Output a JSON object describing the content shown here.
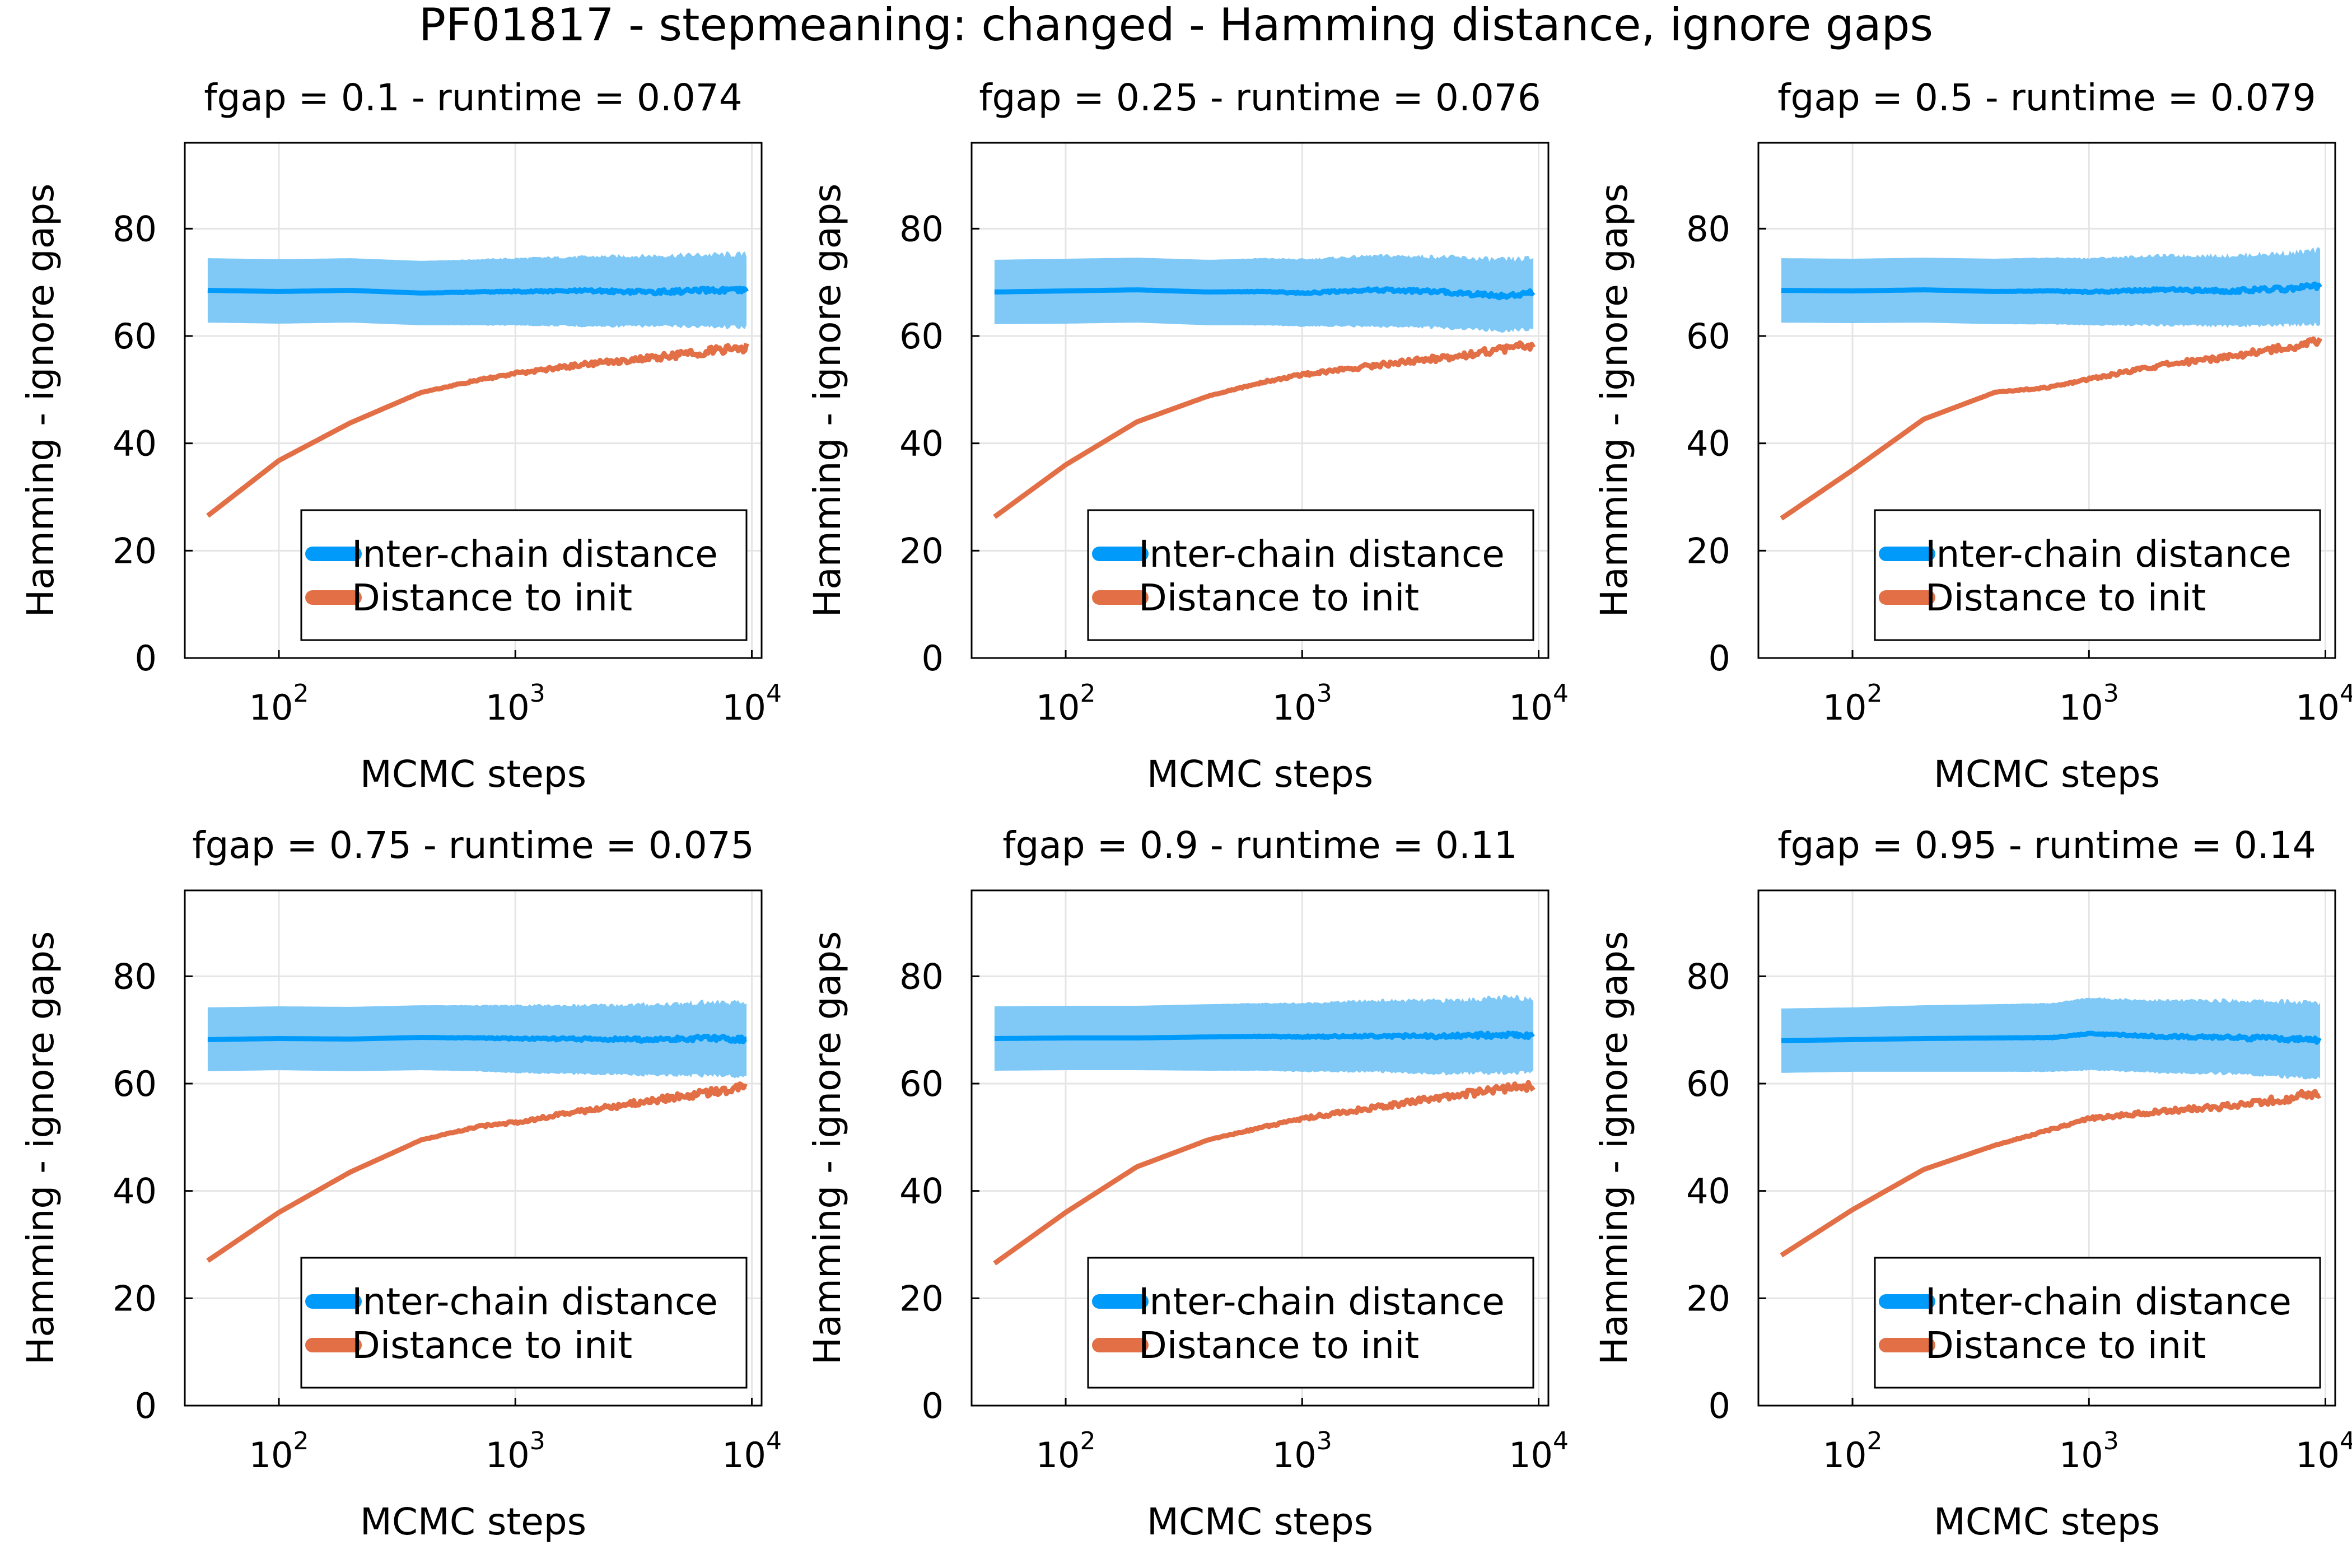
{
  "figure": {
    "suptitle": "PF01817 - stepmeaning: changed - Hamming distance, ignore gaps"
  },
  "colors": {
    "inter_chain_line": "#009AFA",
    "inter_chain_band": "#80C9F7",
    "distance_to_init": "#E26F46",
    "grid": "#E5E5E5",
    "axis": "#000000"
  },
  "chart_data": [
    {
      "type": "line",
      "title": "fgap = 0.1 - runtime = 0.074",
      "xlabel": "MCMC steps",
      "ylabel": "Hamming - ignore gaps",
      "xscale": "log",
      "xlim": [
        40,
        11000
      ],
      "ylim": [
        0,
        96
      ],
      "xticks": [
        {
          "value": 100,
          "base": "10",
          "exp": "2"
        },
        {
          "value": 1000,
          "base": "10",
          "exp": "3"
        },
        {
          "value": 10000,
          "base": "10",
          "exp": "4"
        }
      ],
      "yticks": [
        "0",
        "20",
        "40",
        "60",
        "80"
      ],
      "grid": true,
      "legend": "bottom-right",
      "x": [
        50,
        100,
        200,
        400,
        700,
        1000,
        2000,
        4000,
        7000,
        9500
      ],
      "series": [
        {
          "name": "Inter-chain distance",
          "values": [
            68.5,
            68.3,
            68.5,
            68.0,
            68.2,
            68.3,
            68.4,
            68.2,
            68.5,
            68.4
          ],
          "lower": [
            62.5,
            62.3,
            62.5,
            62.0,
            62.0,
            62.0,
            61.8,
            61.8,
            61.7,
            61.7
          ],
          "upper": [
            74.5,
            74.3,
            74.5,
            74.0,
            74.3,
            74.5,
            74.8,
            75.0,
            75.2,
            75.2
          ]
        },
        {
          "name": "Distance to init",
          "values": [
            26.5,
            36.8,
            43.8,
            49.5,
            51.8,
            53.0,
            54.8,
            56.0,
            57.3,
            57.8
          ]
        }
      ]
    },
    {
      "type": "line",
      "title": "fgap = 0.25 - runtime = 0.076",
      "xlabel": "MCMC steps",
      "ylabel": "Hamming - ignore gaps",
      "xscale": "log",
      "xlim": [
        40,
        11000
      ],
      "ylim": [
        0,
        96
      ],
      "xticks": [
        {
          "value": 100,
          "base": "10",
          "exp": "2"
        },
        {
          "value": 1000,
          "base": "10",
          "exp": "3"
        },
        {
          "value": 10000,
          "base": "10",
          "exp": "4"
        }
      ],
      "yticks": [
        "0",
        "20",
        "40",
        "60",
        "80"
      ],
      "grid": true,
      "legend": "bottom-right",
      "x": [
        50,
        100,
        200,
        400,
        700,
        1000,
        2000,
        4000,
        7000,
        9500
      ],
      "series": [
        {
          "name": "Inter-chain distance",
          "values": [
            68.2,
            68.4,
            68.6,
            68.2,
            68.3,
            68.0,
            68.6,
            68.2,
            67.5,
            68.0
          ],
          "lower": [
            62.2,
            62.3,
            62.5,
            62.0,
            62.0,
            61.8,
            61.8,
            61.5,
            61.0,
            61.3
          ],
          "upper": [
            74.2,
            74.4,
            74.6,
            74.2,
            74.5,
            74.3,
            75.0,
            74.8,
            74.2,
            74.5
          ]
        },
        {
          "name": "Distance to init",
          "values": [
            26.3,
            36.0,
            44.0,
            48.8,
            51.5,
            52.8,
            54.5,
            56.0,
            57.5,
            58.3
          ]
        }
      ]
    },
    {
      "type": "line",
      "title": "fgap = 0.5 - runtime = 0.079",
      "xlabel": "MCMC steps",
      "ylabel": "Hamming - ignore gaps",
      "xscale": "log",
      "xlim": [
        40,
        11000
      ],
      "ylim": [
        0,
        96
      ],
      "xticks": [
        {
          "value": 100,
          "base": "10",
          "exp": "2"
        },
        {
          "value": 1000,
          "base": "10",
          "exp": "3"
        },
        {
          "value": 10000,
          "base": "10",
          "exp": "4"
        }
      ],
      "yticks": [
        "0",
        "20",
        "40",
        "60",
        "80"
      ],
      "grid": true,
      "legend": "bottom-right",
      "x": [
        50,
        100,
        200,
        400,
        700,
        1000,
        2000,
        4000,
        7000,
        9500
      ],
      "series": [
        {
          "name": "Inter-chain distance",
          "values": [
            68.5,
            68.4,
            68.6,
            68.3,
            68.4,
            68.2,
            68.6,
            68.4,
            68.8,
            69.3
          ],
          "lower": [
            62.5,
            62.4,
            62.5,
            62.2,
            62.2,
            62.0,
            62.0,
            61.8,
            62.0,
            62.3
          ],
          "upper": [
            74.5,
            74.4,
            74.6,
            74.4,
            74.6,
            74.5,
            75.0,
            75.0,
            75.5,
            76.0
          ]
        },
        {
          "name": "Distance to init",
          "values": [
            26.0,
            35.0,
            44.5,
            49.5,
            50.5,
            52.0,
            54.5,
            56.3,
            58.0,
            59.0
          ]
        }
      ]
    },
    {
      "type": "line",
      "title": "fgap = 0.75 - runtime = 0.075",
      "xlabel": "MCMC steps",
      "ylabel": "Hamming - ignore gaps",
      "xscale": "log",
      "xlim": [
        40,
        11000
      ],
      "ylim": [
        0,
        96
      ],
      "xticks": [
        {
          "value": 100,
          "base": "10",
          "exp": "2"
        },
        {
          "value": 1000,
          "base": "10",
          "exp": "3"
        },
        {
          "value": 10000,
          "base": "10",
          "exp": "4"
        }
      ],
      "yticks": [
        "0",
        "20",
        "40",
        "60",
        "80"
      ],
      "grid": true,
      "legend": "bottom-right",
      "x": [
        50,
        100,
        200,
        400,
        700,
        1000,
        2000,
        4000,
        7000,
        9500
      ],
      "series": [
        {
          "name": "Inter-chain distance",
          "values": [
            68.2,
            68.4,
            68.3,
            68.6,
            68.5,
            68.4,
            68.3,
            68.2,
            68.5,
            68.2
          ],
          "lower": [
            62.3,
            62.5,
            62.3,
            62.5,
            62.3,
            62.0,
            61.8,
            61.5,
            61.5,
            61.3
          ],
          "upper": [
            74.2,
            74.4,
            74.3,
            74.6,
            74.6,
            74.6,
            74.6,
            74.8,
            75.2,
            75.0
          ]
        },
        {
          "name": "Distance to init",
          "values": [
            27.0,
            36.0,
            43.5,
            49.5,
            52.0,
            52.8,
            55.0,
            57.0,
            58.5,
            59.5
          ]
        }
      ]
    },
    {
      "type": "line",
      "title": "fgap = 0.9 - runtime = 0.11",
      "xlabel": "MCMC steps",
      "ylabel": "Hamming - ignore gaps",
      "xscale": "log",
      "xlim": [
        40,
        11000
      ],
      "ylim": [
        0,
        96
      ],
      "xticks": [
        {
          "value": 100,
          "base": "10",
          "exp": "2"
        },
        {
          "value": 1000,
          "base": "10",
          "exp": "3"
        },
        {
          "value": 10000,
          "base": "10",
          "exp": "4"
        }
      ],
      "yticks": [
        "0",
        "20",
        "40",
        "60",
        "80"
      ],
      "grid": true,
      "legend": "bottom-right",
      "x": [
        50,
        100,
        200,
        400,
        700,
        1000,
        2000,
        4000,
        7000,
        9500
      ],
      "series": [
        {
          "name": "Inter-chain distance",
          "values": [
            68.4,
            68.5,
            68.5,
            68.7,
            68.8,
            68.7,
            68.9,
            68.8,
            69.1,
            69.0
          ],
          "lower": [
            62.4,
            62.5,
            62.5,
            62.4,
            62.4,
            62.2,
            62.2,
            61.8,
            62.0,
            62.0
          ],
          "upper": [
            74.4,
            74.5,
            74.5,
            74.8,
            75.0,
            75.0,
            75.5,
            75.5,
            76.0,
            76.0
          ]
        },
        {
          "name": "Distance to init",
          "values": [
            26.5,
            36.0,
            44.5,
            49.5,
            52.0,
            53.5,
            55.5,
            57.5,
            59.0,
            59.5
          ]
        }
      ]
    },
    {
      "type": "line",
      "title": "fgap = 0.95 - runtime = 0.14",
      "xlabel": "MCMC steps",
      "ylabel": "Hamming - ignore gaps",
      "xscale": "log",
      "xlim": [
        40,
        11000
      ],
      "ylim": [
        0,
        96
      ],
      "xticks": [
        {
          "value": 100,
          "base": "10",
          "exp": "2"
        },
        {
          "value": 1000,
          "base": "10",
          "exp": "3"
        },
        {
          "value": 10000,
          "base": "10",
          "exp": "4"
        }
      ],
      "yticks": [
        "0",
        "20",
        "40",
        "60",
        "80"
      ],
      "grid": true,
      "legend": "bottom-right",
      "x": [
        50,
        100,
        200,
        400,
        700,
        1000,
        2000,
        4000,
        7000,
        9500
      ],
      "series": [
        {
          "name": "Inter-chain distance",
          "values": [
            68.0,
            68.2,
            68.4,
            68.5,
            68.6,
            69.3,
            68.8,
            68.6,
            68.3,
            68.0
          ],
          "lower": [
            62.0,
            62.2,
            62.2,
            62.2,
            62.2,
            62.5,
            62.0,
            61.8,
            61.2,
            61.0
          ],
          "upper": [
            74.0,
            74.2,
            74.6,
            74.8,
            75.0,
            76.0,
            75.5,
            75.5,
            75.3,
            75.0
          ]
        },
        {
          "name": "Distance to init",
          "values": [
            28.0,
            36.5,
            44.0,
            48.5,
            51.5,
            53.5,
            54.8,
            55.8,
            57.3,
            58.5
          ]
        }
      ]
    }
  ]
}
